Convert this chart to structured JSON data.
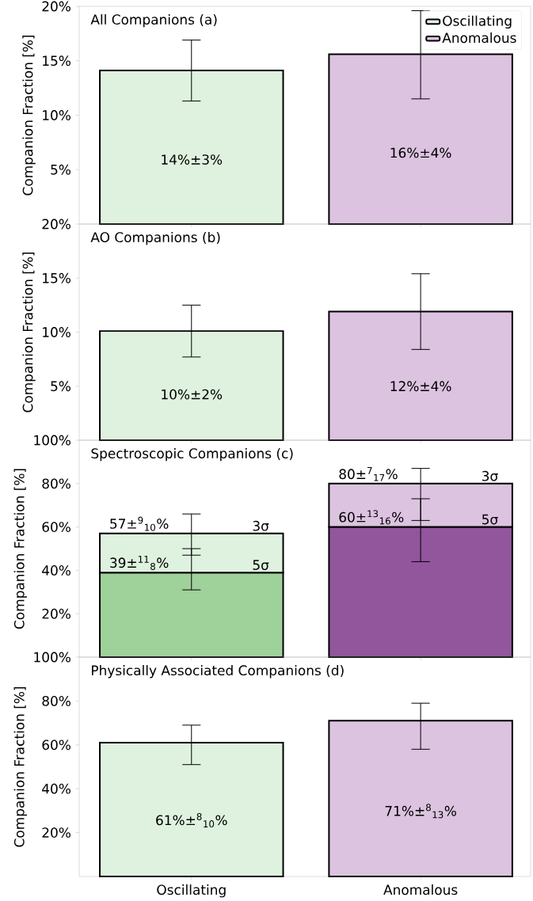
{
  "chart_data": [
    {
      "type": "bar",
      "title": "All Companions (a)",
      "ylabel": "Companion Fraction [%]",
      "categories": [
        null,
        null
      ],
      "stacked": true,
      "series": [
        {
          "name": "Oscillating",
          "color": "#dff2df",
          "values": [
            14.1,
            null
          ],
          "errors": [
            [
              11.3,
              16.9
            ],
            null
          ],
          "value_labels": [
            "14%±3%",
            null
          ]
        },
        {
          "name": "Anomalous",
          "color": "#dcc3e0",
          "values": [
            null,
            15.6
          ],
          "errors": [
            null,
            [
              11.5,
              19.6
            ]
          ],
          "value_labels": [
            null,
            "16%±4%"
          ]
        }
      ],
      "ylim": [
        0,
        20
      ],
      "yticks": [
        {
          "value": 5,
          "label": "5%"
        },
        {
          "value": 10,
          "label": "10%"
        },
        {
          "value": 15,
          "label": "15%"
        },
        {
          "value": 20,
          "label": "20%"
        }
      ],
      "legend": "top right",
      "tick_labels": "y"
    },
    {
      "type": "bar",
      "title": "AO Companions (b)",
      "ylabel": "Companion Fraction [%]",
      "categories": [
        null,
        null
      ],
      "values": [
        10.1,
        11.9
      ],
      "colors": [
        "#dff2df",
        "#dcc3e0"
      ],
      "errors": [
        [
          7.7,
          12.5
        ],
        [
          8.4,
          15.4
        ]
      ],
      "value_labels": [
        "10%±2%",
        "12%±4%"
      ],
      "ylim": [
        0,
        20
      ],
      "yticks": [
        {
          "value": 5,
          "label": "5%"
        },
        {
          "value": 10,
          "label": "10%"
        },
        {
          "value": 15,
          "label": "15%"
        },
        {
          "value": 20,
          "label": "20%"
        }
      ],
      "tick_labels": "y"
    },
    {
      "type": "bar",
      "title": "Spectroscopic Companions (c)",
      "ylabel": "Companion Fraction [%]",
      "categories": [
        null,
        null
      ],
      "stacked": true,
      "series": [
        {
          "name": "5σ",
          "colors": [
            "#9fd19b",
            "#91569c"
          ],
          "values": [
            39,
            60
          ],
          "errors": [
            [
              31,
              50
            ],
            [
              44,
              73
            ]
          ],
          "value_labels": [
            "39±$^{11}$$_{8}$%",
            "60±$^{13}$$_{16}$%"
          ]
        },
        {
          "name": "3σ",
          "colors": [
            "#dff2df",
            "#dcc3e0"
          ],
          "values": [
            18,
            20
          ],
          "errors": [
            [
              47,
              66
            ],
            [
              63,
              87
            ]
          ]
        }
      ],
      "totals": [
        "57±$^{9}$$_{10}$%",
        "80±$^{7}$$_{17}$%"
      ],
      "ylim": [
        0,
        100
      ],
      "yticks": [
        {
          "value": 20,
          "label": "20%"
        },
        {
          "value": 40,
          "label": "40%"
        },
        {
          "value": 60,
          "label": "60%"
        },
        {
          "value": 80,
          "label": "80%"
        },
        {
          "value": 100,
          "label": "100%"
        }
      ],
      "tick_labels": "y"
    },
    {
      "type": "bar",
      "title": "Physically Associated Companions (d)",
      "ylabel": "Companion Fraction [%]",
      "categories": [
        "Oscillating",
        "Anomalous"
      ],
      "values": [
        61,
        71
      ],
      "colors": [
        "#dff2df",
        "#dcc3e0"
      ],
      "errors": [
        [
          51,
          69
        ],
        [
          58,
          79
        ]
      ],
      "value_labels": [
        "61%±$^{8}$$_{10}$%",
        "71%±$^{8}$$_{13}$%"
      ],
      "ylim": [
        0,
        100
      ],
      "yticks": [
        {
          "value": 20,
          "label": "20%"
        },
        {
          "value": 40,
          "label": "40%"
        },
        {
          "value": 60,
          "label": "60%"
        },
        {
          "value": 80,
          "label": "80%"
        },
        {
          "value": 100,
          "label": "100%"
        }
      ]
    }
  ]
}
